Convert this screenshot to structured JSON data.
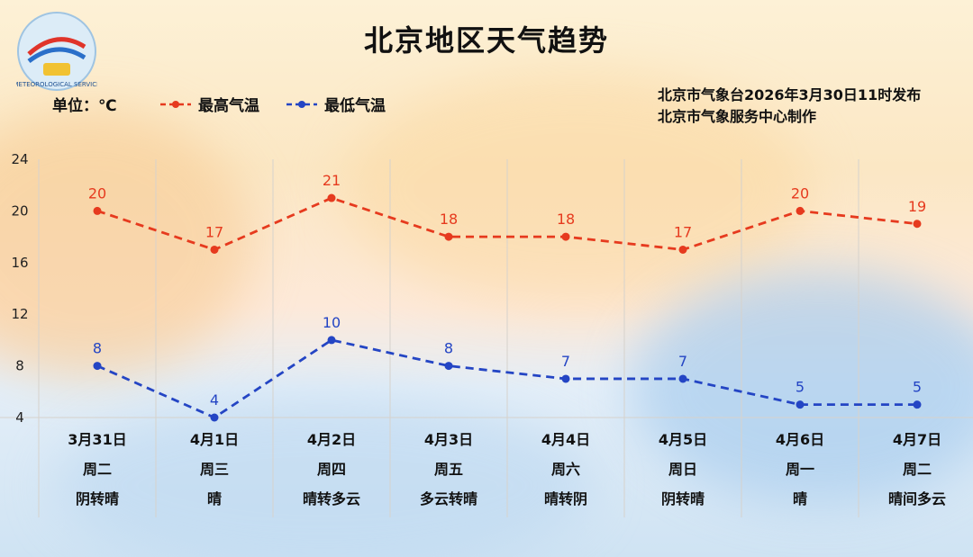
{
  "header": {
    "title": "北京地区天气趋势",
    "unit": "单位：℃",
    "issuer_line1": "北京市气象台2026年3月30日11时发布",
    "issuer_line2": "北京市气象服务中心制作"
  },
  "colors": {
    "high": "#e63a1e",
    "low": "#2445c4",
    "grid": "#d6d2cc"
  },
  "chart_data": {
    "type": "line",
    "ylim": [
      4,
      24
    ],
    "yticks": [
      4,
      8,
      12,
      16,
      20,
      24
    ],
    "categories": [
      "3月31日",
      "4月1日",
      "4月2日",
      "4月3日",
      "4月4日",
      "4月5日",
      "4月6日",
      "4月7日"
    ],
    "weekdays": [
      "周二",
      "周三",
      "周四",
      "周五",
      "周六",
      "周日",
      "周一",
      "周二"
    ],
    "weather": [
      "阴转晴",
      "晴",
      "晴转多云",
      "多云转晴",
      "晴转阴",
      "阴转晴",
      "晴",
      "晴间多云"
    ],
    "series": [
      {
        "name": "最高气温",
        "values": [
          20,
          17,
          21,
          18,
          18,
          17,
          20,
          19
        ]
      },
      {
        "name": "最低气温",
        "values": [
          8,
          4,
          10,
          8,
          7,
          7,
          5,
          5
        ]
      }
    ]
  }
}
